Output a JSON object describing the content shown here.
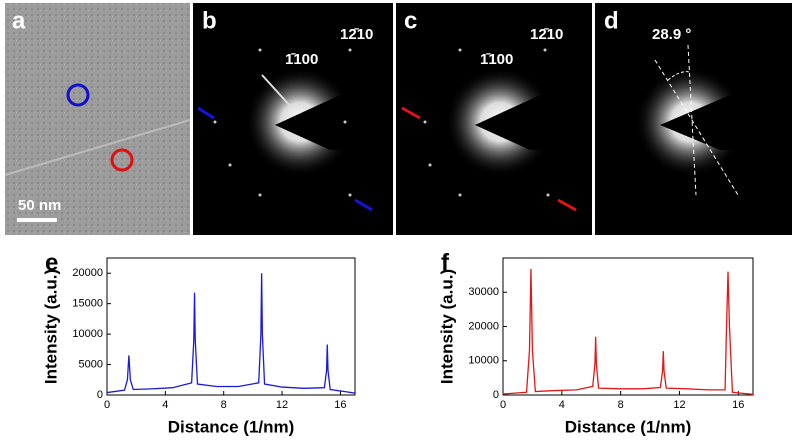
{
  "panels": [
    {
      "label": "a",
      "scale_bar": "50 nm"
    },
    {
      "label": "b",
      "indices": [
        "12̄10",
        "1̄100"
      ]
    },
    {
      "label": "c",
      "indices": [
        "12̄10",
        "1̄100"
      ]
    },
    {
      "label": "d",
      "angle": "28.9 °"
    }
  ],
  "chart_data": [
    {
      "type": "line",
      "panel_label": "e",
      "xlabel": "Distance (1/nm)",
      "ylabel": "Intensity (a.u.)",
      "x": [
        0,
        1.2,
        1.4,
        1.5,
        1.6,
        1.8,
        3,
        4.5,
        5.8,
        5.95,
        6.0,
        6.05,
        6.2,
        7.5,
        9,
        10.4,
        10.55,
        10.6,
        10.65,
        10.8,
        12,
        13.5,
        14.9,
        15.05,
        15.1,
        15.15,
        15.3,
        16.5,
        17
      ],
      "series": [
        {
          "color": "#1a1adb",
          "values": [
            400,
            800,
            2500,
            6500,
            2500,
            900,
            1000,
            1200,
            2000,
            9000,
            16800,
            9000,
            1800,
            1400,
            1400,
            2000,
            10000,
            20000,
            10000,
            1800,
            1300,
            1100,
            1200,
            4000,
            8300,
            4000,
            900,
            500,
            300
          ]
        }
      ],
      "xlim": [
        0,
        17
      ],
      "ylim": [
        0,
        22500
      ],
      "xticks": [
        0,
        4,
        8,
        12,
        16
      ],
      "yticks": [
        0,
        5000,
        10000,
        15000,
        20000
      ]
    },
    {
      "type": "line",
      "panel_label": "f",
      "xlabel": "Distance (1/nm)",
      "ylabel": "Intensity (a.u.)",
      "x": [
        0,
        1.6,
        1.8,
        1.9,
        2.0,
        2.2,
        3.5,
        5,
        6.1,
        6.25,
        6.3,
        6.35,
        6.5,
        8,
        9.5,
        10.7,
        10.85,
        10.9,
        10.95,
        11.1,
        12.5,
        14,
        15.1,
        15.2,
        15.3,
        15.4,
        15.6,
        16.5,
        17
      ],
      "series": [
        {
          "color": "#e01818",
          "values": [
            300,
            800,
            13000,
            36800,
            13000,
            1000,
            1300,
            1500,
            2500,
            9000,
            17000,
            9000,
            2000,
            1800,
            1800,
            2200,
            7000,
            12800,
            7000,
            2000,
            1800,
            1500,
            1500,
            20000,
            36000,
            20000,
            800,
            400,
            200
          ]
        }
      ],
      "xlim": [
        0,
        17
      ],
      "ylim": [
        0,
        40000
      ],
      "xticks": [
        0,
        4,
        8,
        12,
        16
      ],
      "yticks": [
        0,
        10000,
        20000,
        30000
      ]
    }
  ]
}
